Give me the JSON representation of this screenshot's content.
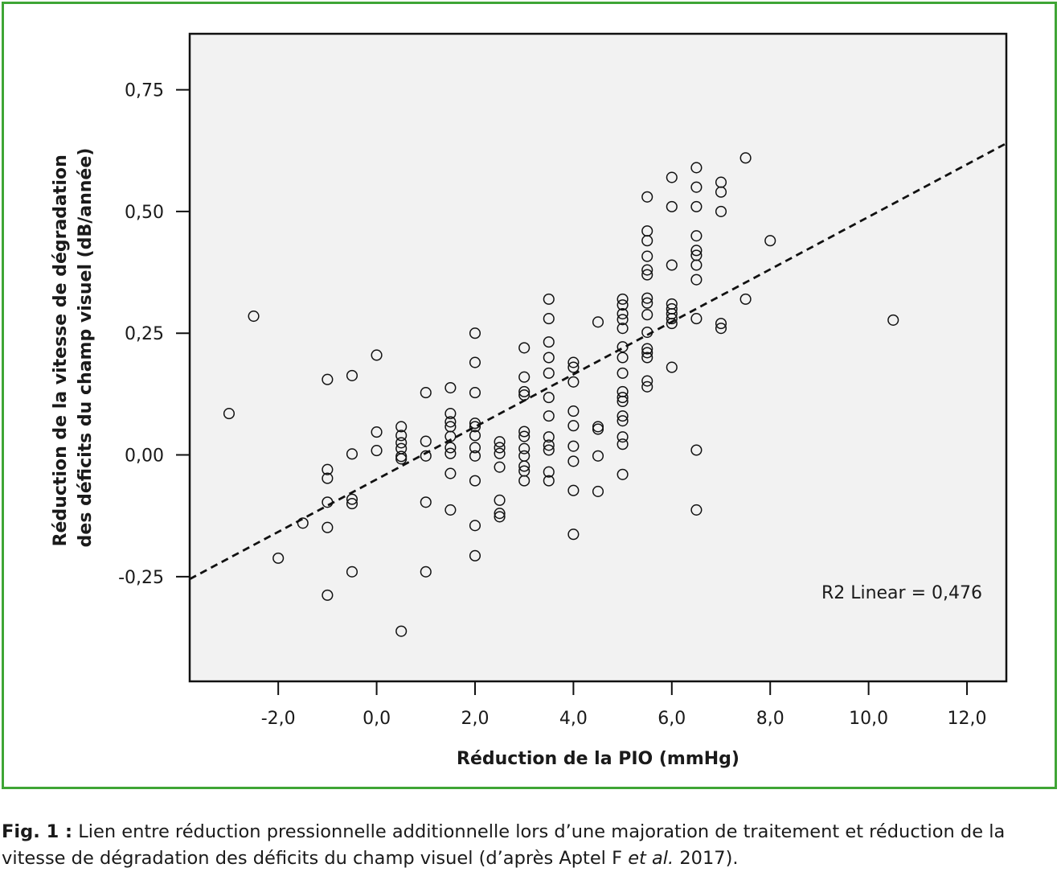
{
  "chart_data": {
    "type": "scatter",
    "title": "",
    "xlabel": "Réduction de la PIO (mmHg)",
    "ylabel_line1": "Réduction de la vitesse de dégradation",
    "ylabel_line2": "des déficits du champ visuel (dB/année)",
    "xlim": [
      -3.8,
      12.8
    ],
    "ylim": [
      -0.465,
      0.865
    ],
    "x_ticks": [
      -2,
      0,
      2,
      4,
      6,
      8,
      10,
      12
    ],
    "x_tick_labels": [
      "-2,0",
      "0,0",
      "2,0",
      "4,0",
      "6,0",
      "8,0",
      "10,0",
      "12,0"
    ],
    "y_ticks": [
      -0.25,
      0,
      0.25,
      0.5,
      0.75
    ],
    "y_tick_labels": [
      "-0,25",
      "0,00",
      "0,25",
      "0,50",
      "0,75"
    ],
    "grid": false,
    "annotation": "R2 Linear = 0,476",
    "fit_line": {
      "style": "dashed",
      "points": [
        [
          -3.8,
          -0.255
        ],
        [
          12.8,
          0.64
        ]
      ]
    },
    "points": [
      [
        -3.0,
        0.085
      ],
      [
        -2.5,
        0.285
      ],
      [
        -2.0,
        -0.212
      ],
      [
        -1.5,
        -0.14
      ],
      [
        -1.0,
        0.155
      ],
      [
        -1.0,
        -0.03
      ],
      [
        -1.0,
        -0.048
      ],
      [
        -1.0,
        -0.097
      ],
      [
        -1.0,
        -0.149
      ],
      [
        -1.0,
        -0.288
      ],
      [
        -0.5,
        0.163
      ],
      [
        -0.5,
        0.002
      ],
      [
        -0.5,
        -0.091
      ],
      [
        -0.5,
        -0.1
      ],
      [
        -0.5,
        -0.24
      ],
      [
        0.0,
        0.205
      ],
      [
        0.0,
        0.047
      ],
      [
        0.0,
        0.009
      ],
      [
        0.5,
        0.058
      ],
      [
        0.5,
        0.04
      ],
      [
        0.5,
        0.025
      ],
      [
        0.5,
        0.013
      ],
      [
        0.5,
        -0.003
      ],
      [
        0.5,
        -0.008
      ],
      [
        0.5,
        -0.362
      ],
      [
        1.0,
        0.128
      ],
      [
        1.0,
        0.028
      ],
      [
        1.0,
        -0.002
      ],
      [
        1.0,
        -0.097
      ],
      [
        1.0,
        -0.24
      ],
      [
        1.5,
        0.138
      ],
      [
        1.5,
        0.085
      ],
      [
        1.5,
        0.068
      ],
      [
        1.5,
        0.058
      ],
      [
        1.5,
        0.038
      ],
      [
        1.5,
        0.015
      ],
      [
        1.5,
        0.003
      ],
      [
        1.5,
        -0.038
      ],
      [
        1.5,
        -0.113
      ],
      [
        2.0,
        0.25
      ],
      [
        2.0,
        0.19
      ],
      [
        2.0,
        0.128
      ],
      [
        2.0,
        0.065
      ],
      [
        2.0,
        0.058
      ],
      [
        2.0,
        0.04
      ],
      [
        2.0,
        0.015
      ],
      [
        2.0,
        -0.002
      ],
      [
        2.0,
        -0.053
      ],
      [
        2.0,
        -0.145
      ],
      [
        2.0,
        -0.207
      ],
      [
        2.5,
        0.027
      ],
      [
        2.5,
        0.015
      ],
      [
        2.5,
        0.003
      ],
      [
        2.5,
        -0.025
      ],
      [
        2.5,
        -0.093
      ],
      [
        2.5,
        -0.12
      ],
      [
        2.5,
        -0.127
      ],
      [
        3.0,
        0.22
      ],
      [
        3.0,
        0.16
      ],
      [
        3.0,
        0.13
      ],
      [
        3.0,
        0.123
      ],
      [
        3.0,
        0.048
      ],
      [
        3.0,
        0.038
      ],
      [
        3.0,
        0.013
      ],
      [
        3.0,
        -0.002
      ],
      [
        3.0,
        -0.023
      ],
      [
        3.0,
        -0.033
      ],
      [
        3.0,
        -0.053
      ],
      [
        3.5,
        0.32
      ],
      [
        3.5,
        0.28
      ],
      [
        3.5,
        0.232
      ],
      [
        3.5,
        0.2
      ],
      [
        3.5,
        0.168
      ],
      [
        3.5,
        0.118
      ],
      [
        3.5,
        0.08
      ],
      [
        3.5,
        0.037
      ],
      [
        3.5,
        0.02
      ],
      [
        3.5,
        0.01
      ],
      [
        3.5,
        -0.035
      ],
      [
        3.5,
        -0.053
      ],
      [
        4.0,
        0.19
      ],
      [
        4.0,
        0.18
      ],
      [
        4.0,
        0.15
      ],
      [
        4.0,
        0.09
      ],
      [
        4.0,
        0.06
      ],
      [
        4.0,
        0.018
      ],
      [
        4.0,
        -0.013
      ],
      [
        4.0,
        -0.073
      ],
      [
        4.0,
        -0.163
      ],
      [
        4.5,
        0.273
      ],
      [
        4.5,
        0.058
      ],
      [
        4.5,
        0.053
      ],
      [
        4.5,
        -0.002
      ],
      [
        4.5,
        -0.075
      ],
      [
        5.0,
        0.32
      ],
      [
        5.0,
        0.308
      ],
      [
        5.0,
        0.29
      ],
      [
        5.0,
        0.278
      ],
      [
        5.0,
        0.26
      ],
      [
        5.0,
        0.222
      ],
      [
        5.0,
        0.2
      ],
      [
        5.0,
        0.168
      ],
      [
        5.0,
        0.13
      ],
      [
        5.0,
        0.118
      ],
      [
        5.0,
        0.11
      ],
      [
        5.0,
        0.08
      ],
      [
        5.0,
        0.07
      ],
      [
        5.0,
        0.037
      ],
      [
        5.0,
        0.022
      ],
      [
        5.0,
        -0.04
      ],
      [
        5.5,
        0.53
      ],
      [
        5.5,
        0.46
      ],
      [
        5.5,
        0.44
      ],
      [
        5.5,
        0.408
      ],
      [
        5.5,
        0.38
      ],
      [
        5.5,
        0.37
      ],
      [
        5.5,
        0.322
      ],
      [
        5.5,
        0.312
      ],
      [
        5.5,
        0.288
      ],
      [
        5.5,
        0.252
      ],
      [
        5.5,
        0.218
      ],
      [
        5.5,
        0.21
      ],
      [
        5.5,
        0.2
      ],
      [
        5.5,
        0.152
      ],
      [
        5.5,
        0.14
      ],
      [
        6.0,
        0.57
      ],
      [
        6.0,
        0.51
      ],
      [
        6.0,
        0.39
      ],
      [
        6.0,
        0.31
      ],
      [
        6.0,
        0.3
      ],
      [
        6.0,
        0.29
      ],
      [
        6.0,
        0.28
      ],
      [
        6.0,
        0.27
      ],
      [
        6.0,
        0.18
      ],
      [
        6.5,
        0.59
      ],
      [
        6.5,
        0.55
      ],
      [
        6.5,
        0.51
      ],
      [
        6.5,
        0.45
      ],
      [
        6.5,
        0.42
      ],
      [
        6.5,
        0.41
      ],
      [
        6.5,
        0.39
      ],
      [
        6.5,
        0.36
      ],
      [
        6.5,
        0.28
      ],
      [
        6.5,
        0.01
      ],
      [
        6.5,
        -0.113
      ],
      [
        7.0,
        0.56
      ],
      [
        7.0,
        0.54
      ],
      [
        7.0,
        0.5
      ],
      [
        7.0,
        0.27
      ],
      [
        7.0,
        0.26
      ],
      [
        7.5,
        0.61
      ],
      [
        7.5,
        0.32
      ],
      [
        8.0,
        0.44
      ],
      [
        10.5,
        0.277
      ]
    ]
  },
  "caption": {
    "label": "Fig. 1 :",
    "text_before_italic": " Lien entre réduction pressionnelle additionnelle lors d’une majoration de traitement et réduction de la vitesse de dégradation des déficits du champ visuel (d’après Aptel F ",
    "italic": "et al.",
    "text_after_italic": " 2017)."
  }
}
